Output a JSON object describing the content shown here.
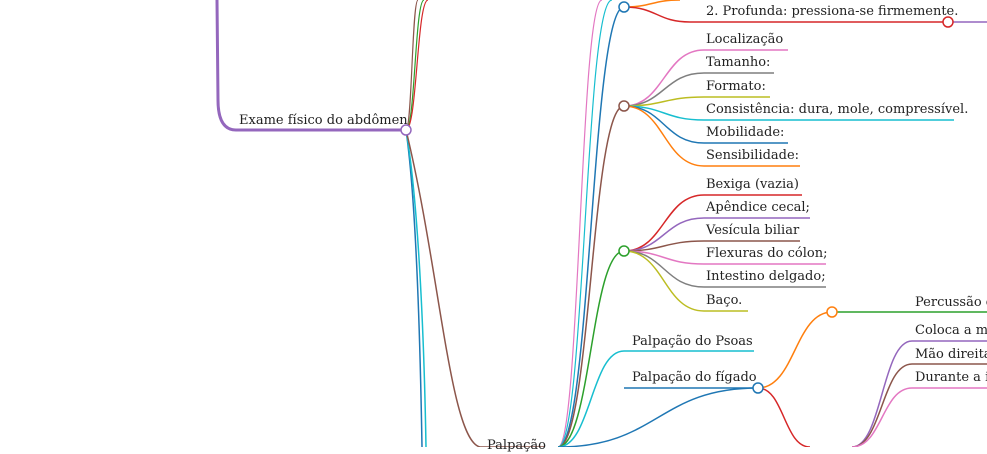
{
  "mindmap": {
    "root": {
      "label": "Exame físico do abdômen",
      "color": "#9467bd"
    },
    "clipped_branch": {
      "label": "Palpação",
      "color": "#8c564b"
    },
    "palpation_types": {
      "deep": {
        "label": "2. Profunda: pressiona-se firmemente.",
        "color": "#d62728"
      }
    },
    "mass_characteristics": {
      "color": "#8c564b",
      "items": [
        {
          "label": "Localização",
          "color": "#e377c2"
        },
        {
          "label": "Tamanho:",
          "color": "#7f7f7f"
        },
        {
          "label": "Formato:",
          "color": "#bcbd22"
        },
        {
          "label": "Consistência: dura, mole, compressível.",
          "color": "#17becf"
        },
        {
          "label": "Mobilidade:",
          "color": "#1f77b4"
        },
        {
          "label": "Sensibilidade:",
          "color": "#ff7f0e"
        }
      ]
    },
    "palpable_structures": {
      "color": "#2ca02c",
      "items": [
        {
          "label": "Bexiga (vazia)",
          "color": "#d62728"
        },
        {
          "label": "Apêndice cecal;",
          "color": "#9467bd"
        },
        {
          "label": "Vesícula biliar",
          "color": "#8c564b"
        },
        {
          "label": "Flexuras do cólon;",
          "color": "#e377c2"
        },
        {
          "label": "Intestino delgado;",
          "color": "#7f7f7f"
        },
        {
          "label": "Baço.",
          "color": "#bcbd22"
        }
      ]
    },
    "psoas": {
      "label": "Palpação do Psoas",
      "color": "#17becf"
    },
    "liver": {
      "label": "Palpação do fígado",
      "color": "#1f77b4",
      "children": [
        {
          "label": "Percussão d",
          "color": "#2ca02c"
        },
        {
          "label": "Coloca a mã",
          "color": "#9467bd"
        },
        {
          "label": "Mão direita",
          "color": "#8c564b"
        },
        {
          "label": "Durante a in",
          "color": "#e377c2"
        }
      ]
    }
  }
}
